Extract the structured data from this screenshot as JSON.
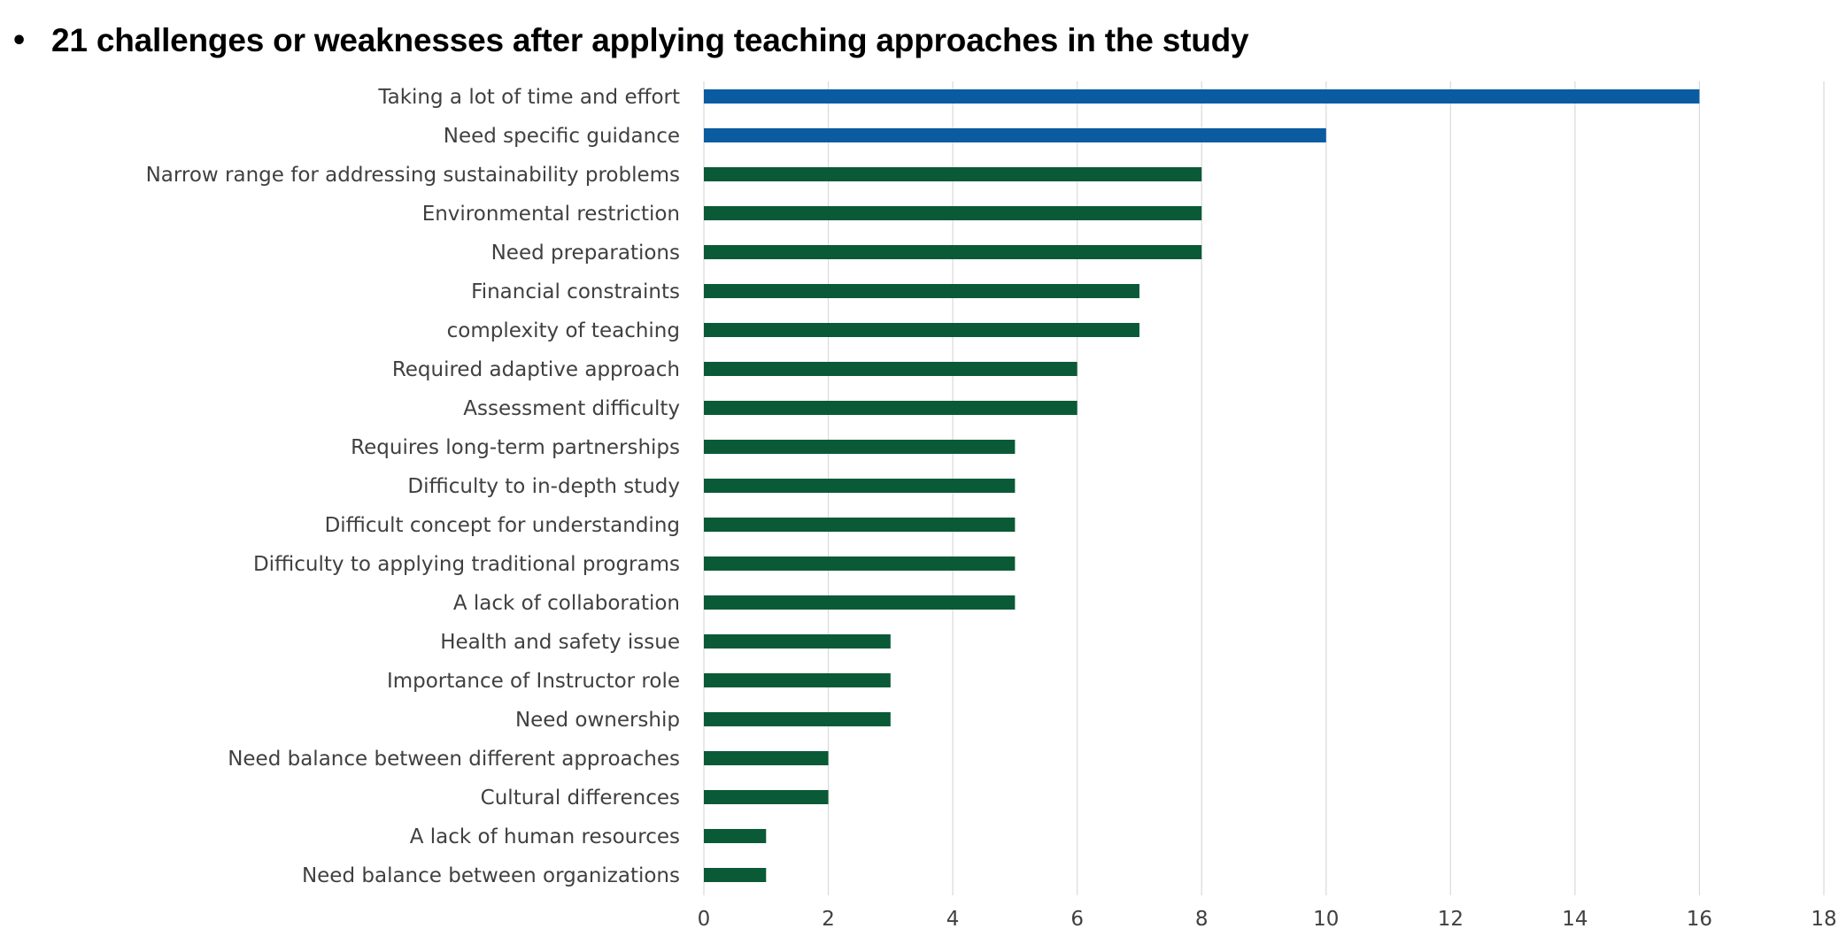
{
  "title": {
    "bullet": "•",
    "text": "21 challenges or weaknesses after applying teaching approaches in the study"
  },
  "chart_data": {
    "type": "bar",
    "orientation": "horizontal",
    "title": "21 challenges or weaknesses after applying teaching approaches in the study",
    "xlabel": "",
    "ylabel": "",
    "xlim": [
      0,
      18
    ],
    "xticks": [
      0,
      2,
      4,
      6,
      8,
      10,
      12,
      14,
      16,
      18
    ],
    "grid": "vertical",
    "legend": "none",
    "colors": {
      "highlight": "#0b5ba1",
      "default": "#0a5a37",
      "grid": "#d9d9d9",
      "label": "#404040"
    },
    "categories": [
      "Taking a lot of time and effort",
      "Need  specific guidance",
      "Narrow range for addressing sustainability problems",
      "Environmental restriction",
      "Need preparations",
      "Financial constraints",
      "complexity of teaching",
      "Required adaptive approach",
      "Assessment difficulty",
      "Requires long-term partnerships",
      "Difficulty to in-depth study",
      "Difficult concept for  understanding",
      "Difficulty to applying traditional programs",
      "A lack of collaboration",
      "Health and safety issue",
      "Importance of Instructor role",
      "Need ownership",
      "Need balance between different approaches",
      "Cultural differences",
      "A lack of human resources",
      "Need balance between organizations"
    ],
    "values": [
      16,
      10,
      8,
      8,
      8,
      7,
      7,
      6,
      6,
      5,
      5,
      5,
      5,
      5,
      3,
      3,
      3,
      2,
      2,
      1,
      1
    ],
    "highlighted": [
      true,
      true,
      false,
      false,
      false,
      false,
      false,
      false,
      false,
      false,
      false,
      false,
      false,
      false,
      false,
      false,
      false,
      false,
      false,
      false,
      false
    ]
  }
}
